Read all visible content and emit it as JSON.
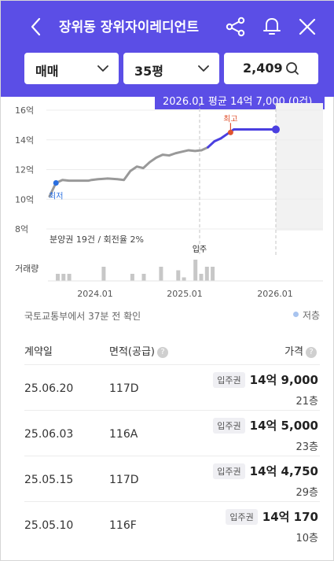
{
  "header": {
    "title": "장위동 장위자이레디언트",
    "icons": [
      "chevron-left-icon",
      "share-icon",
      "bell-icon",
      "close-icon"
    ]
  },
  "filters": {
    "trade_type": "매매",
    "size": "35평",
    "count": "2,409"
  },
  "tooltip": "2026.01 평균 14억 7,000 (0건)",
  "chart_data": {
    "type": "line",
    "y_ticks": [
      "16억",
      "14억",
      "12억",
      "10억",
      "8억"
    ],
    "x_ticks": [
      "2024.01",
      "2025.01",
      "2026.01"
    ],
    "series": [
      {
        "values": [
          [
            0,
            10.2
          ],
          [
            4,
            11.1
          ],
          [
            8,
            11.3
          ],
          [
            12,
            11.25
          ],
          [
            18,
            11.25
          ],
          [
            24,
            11.25
          ],
          [
            26,
            11.3
          ],
          [
            30,
            11.35
          ],
          [
            36,
            11.4
          ],
          [
            42,
            11.35
          ],
          [
            46,
            11.3
          ],
          [
            50,
            11.9
          ],
          [
            54,
            12.2
          ],
          [
            58,
            12.1
          ],
          [
            62,
            12.5
          ],
          [
            66,
            12.8
          ],
          [
            70,
            13.0
          ],
          [
            74,
            12.95
          ],
          [
            78,
            13.1
          ],
          [
            82,
            13.2
          ],
          [
            86,
            13.3
          ],
          [
            90,
            13.25
          ],
          [
            94,
            13.3
          ],
          [
            98,
            13.5
          ]
        ]
      },
      {
        "values": [
          [
            98,
            13.5
          ],
          [
            102,
            13.9
          ],
          [
            106,
            14.1
          ],
          [
            110,
            14.4
          ],
          [
            114,
            14.7
          ],
          [
            122,
            14.7
          ],
          [
            130,
            14.7
          ],
          [
            140,
            14.7
          ]
        ]
      }
    ],
    "markers": {
      "low": {
        "label": "최저",
        "value": 11.1
      },
      "high": {
        "label": "최고",
        "value": 14.9
      }
    },
    "annotations": {
      "presale": "분양권 19건 / 회전율 2%",
      "move_in": "입주"
    },
    "volume_label": "거래량",
    "volume": [
      2,
      2,
      2,
      0,
      0,
      0,
      0,
      0,
      4,
      0,
      0,
      0,
      0,
      2,
      0,
      2,
      0,
      0,
      4,
      0,
      0,
      3,
      1,
      0,
      6,
      2,
      4,
      4
    ]
  },
  "note": "국토교통부에서 37분 전 확인",
  "legend_label": "저층",
  "table": {
    "headers": {
      "date": "계약일",
      "area": "면적(공급)",
      "price": "가격"
    },
    "rows": [
      {
        "date": "25.06.20",
        "area": "117D",
        "badge": "입주권",
        "price": "14억 9,000",
        "floor": "21층"
      },
      {
        "date": "25.06.03",
        "area": "116A",
        "badge": "입주권",
        "price": "14억 5,000",
        "floor": "23층"
      },
      {
        "date": "25.05.15",
        "area": "117D",
        "badge": "입주권",
        "price": "14억 4,750",
        "floor": "29층"
      },
      {
        "date": "25.05.10",
        "area": "116F",
        "badge": "입주권",
        "price": "14억 170",
        "floor": "10층"
      }
    ]
  }
}
